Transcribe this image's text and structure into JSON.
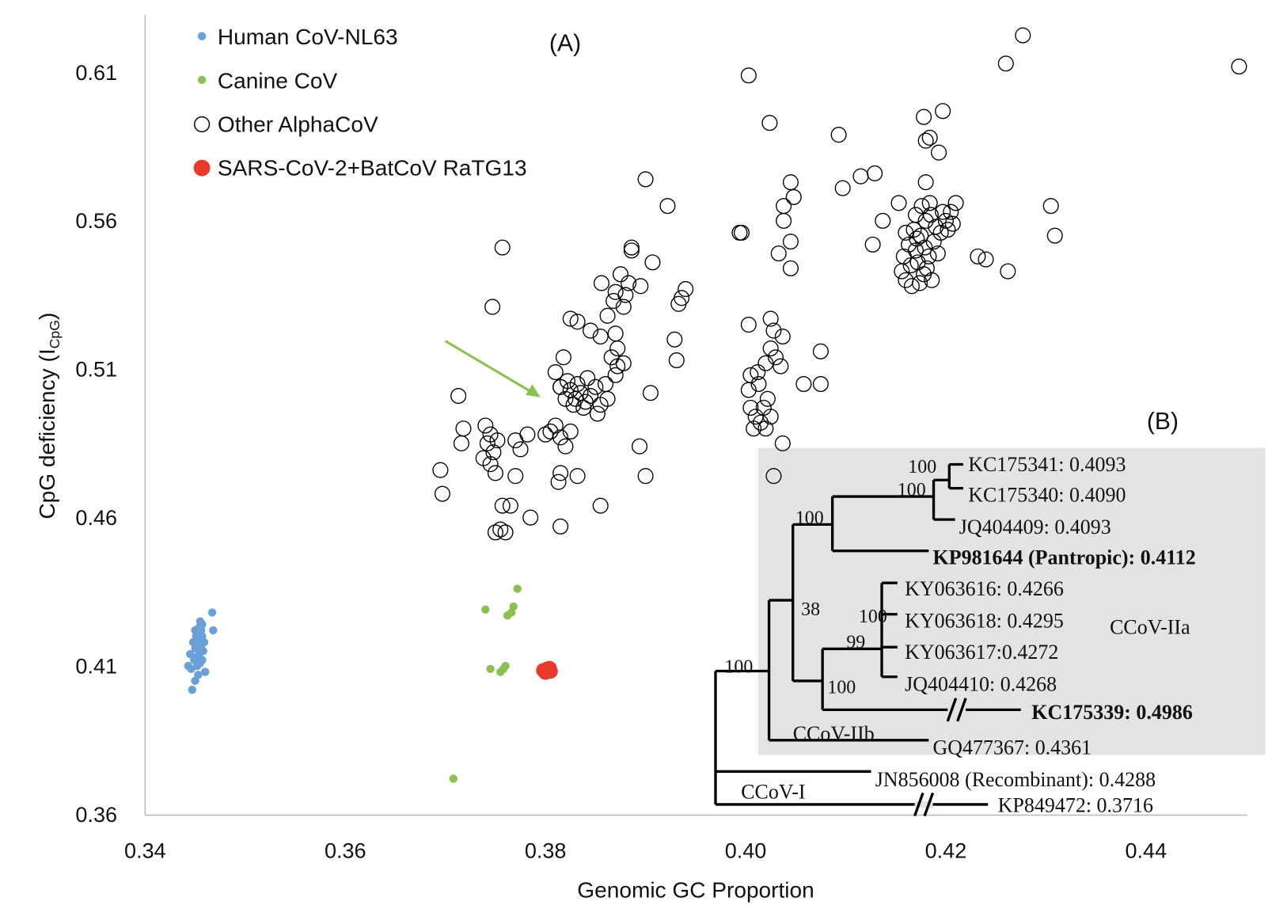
{
  "chart_data": {
    "type": "scatter",
    "xlabel": "Genomic GC Proportion",
    "ylabel": "CpG deficiency (I",
    "ylabel_sub": "CpG",
    "ylabel_close": ")",
    "xlim": [
      0.34,
      0.45
    ],
    "ylim": [
      0.36,
      0.625
    ],
    "x_ticks": [
      "0.34",
      "0.36",
      "0.38",
      "0.40",
      "0.42",
      "0.44"
    ],
    "y_ticks": [
      "0.36",
      "0.41",
      "0.46",
      "0.51",
      "0.56",
      "0.61"
    ],
    "panel_a_label": "(A)",
    "panel_b_label": "(B)",
    "legend_position": "top-left",
    "series": [
      {
        "name": "Human CoV-NL63",
        "color": "#6a9fd8",
        "marker": "filled-small",
        "points": [
          [
            0.3447,
            0.402
          ],
          [
            0.345,
            0.405
          ],
          [
            0.3453,
            0.407
          ],
          [
            0.3446,
            0.409
          ],
          [
            0.3452,
            0.41
          ],
          [
            0.3455,
            0.411
          ],
          [
            0.3449,
            0.412
          ],
          [
            0.3457,
            0.412
          ],
          [
            0.3451,
            0.413
          ],
          [
            0.3445,
            0.414
          ],
          [
            0.3454,
            0.414
          ],
          [
            0.3458,
            0.415
          ],
          [
            0.345,
            0.416
          ],
          [
            0.3456,
            0.416
          ],
          [
            0.3452,
            0.417
          ],
          [
            0.3459,
            0.418
          ],
          [
            0.3448,
            0.418
          ],
          [
            0.3455,
            0.419
          ],
          [
            0.3451,
            0.42
          ],
          [
            0.3457,
            0.42
          ],
          [
            0.3453,
            0.421
          ],
          [
            0.3456,
            0.422
          ],
          [
            0.345,
            0.422
          ],
          [
            0.3454,
            0.423
          ],
          [
            0.3457,
            0.424
          ],
          [
            0.3455,
            0.425
          ],
          [
            0.3443,
            0.41
          ],
          [
            0.346,
            0.408
          ],
          [
            0.3467,
            0.428
          ],
          [
            0.3468,
            0.422
          ]
        ]
      },
      {
        "name": "Canine CoV",
        "color": "#8cc152",
        "marker": "filled-small",
        "points": [
          [
            0.3772,
            0.436
          ],
          [
            0.374,
            0.429
          ],
          [
            0.3766,
            0.428
          ],
          [
            0.3768,
            0.43
          ],
          [
            0.3762,
            0.427
          ],
          [
            0.3745,
            0.409
          ],
          [
            0.3758,
            0.409
          ],
          [
            0.3755,
            0.408
          ],
          [
            0.376,
            0.41
          ],
          [
            0.3708,
            0.372
          ]
        ]
      },
      {
        "name": "Other AlphaCoV",
        "color": "#000000",
        "marker": "open-circle",
        "points": [
          [
            0.4277,
            0.6225
          ],
          [
            0.426,
            0.613
          ],
          [
            0.4493,
            0.612
          ],
          [
            0.4003,
            0.609
          ],
          [
            0.4024,
            0.593
          ],
          [
            0.4093,
            0.589
          ],
          [
            0.4178,
            0.595
          ],
          [
            0.4197,
            0.597
          ],
          [
            0.418,
            0.587
          ],
          [
            0.4184,
            0.588
          ],
          [
            0.4193,
            0.583
          ],
          [
            0.4097,
            0.571
          ],
          [
            0.4115,
            0.575
          ],
          [
            0.4129,
            0.576
          ],
          [
            0.39,
            0.574
          ],
          [
            0.3922,
            0.565
          ],
          [
            0.4045,
            0.573
          ],
          [
            0.4048,
            0.568
          ],
          [
            0.4038,
            0.565
          ],
          [
            0.4038,
            0.56
          ],
          [
            0.4045,
            0.553
          ],
          [
            0.4033,
            0.549
          ],
          [
            0.4045,
            0.544
          ],
          [
            0.3994,
            0.556
          ],
          [
            0.3996,
            0.556
          ],
          [
            0.418,
            0.573
          ],
          [
            0.4153,
            0.566
          ],
          [
            0.4137,
            0.56
          ],
          [
            0.4127,
            0.552
          ],
          [
            0.416,
            0.54
          ],
          [
            0.4165,
            0.545
          ],
          [
            0.417,
            0.55
          ],
          [
            0.4175,
            0.555
          ],
          [
            0.418,
            0.56
          ],
          [
            0.4185,
            0.562
          ],
          [
            0.419,
            0.558
          ],
          [
            0.4195,
            0.556
          ],
          [
            0.42,
            0.56
          ],
          [
            0.4163,
            0.552
          ],
          [
            0.4168,
            0.557
          ],
          [
            0.4172,
            0.546
          ],
          [
            0.4178,
            0.542
          ],
          [
            0.4183,
            0.548
          ],
          [
            0.4188,
            0.553
          ],
          [
            0.4192,
            0.549
          ],
          [
            0.4158,
            0.548
          ],
          [
            0.4166,
            0.538
          ],
          [
            0.4174,
            0.539
          ],
          [
            0.4181,
            0.544
          ],
          [
            0.417,
            0.562
          ],
          [
            0.4176,
            0.565
          ],
          [
            0.4184,
            0.566
          ],
          [
            0.4197,
            0.563
          ],
          [
            0.4202,
            0.557
          ],
          [
            0.416,
            0.556
          ],
          [
            0.4156,
            0.543
          ],
          [
            0.4186,
            0.54
          ],
          [
            0.4179,
            0.551
          ],
          [
            0.4171,
            0.554
          ],
          [
            0.4205,
            0.563
          ],
          [
            0.421,
            0.566
          ],
          [
            0.4207,
            0.559
          ],
          [
            0.4232,
            0.548
          ],
          [
            0.424,
            0.547
          ],
          [
            0.4262,
            0.543
          ],
          [
            0.4305,
            0.565
          ],
          [
            0.4309,
            0.555
          ],
          [
            0.3757,
            0.551
          ],
          [
            0.3747,
            0.531
          ],
          [
            0.3886,
            0.55
          ],
          [
            0.3907,
            0.546
          ],
          [
            0.3886,
            0.551
          ],
          [
            0.3856,
            0.539
          ],
          [
            0.387,
            0.536
          ],
          [
            0.3875,
            0.542
          ],
          [
            0.388,
            0.535
          ],
          [
            0.3868,
            0.533
          ],
          [
            0.3878,
            0.531
          ],
          [
            0.3862,
            0.528
          ],
          [
            0.3895,
            0.538
          ],
          [
            0.3883,
            0.539
          ],
          [
            0.394,
            0.537
          ],
          [
            0.3936,
            0.534
          ],
          [
            0.3933,
            0.532
          ],
          [
            0.3929,
            0.52
          ],
          [
            0.3931,
            0.513
          ],
          [
            0.3825,
            0.527
          ],
          [
            0.3832,
            0.526
          ],
          [
            0.3845,
            0.523
          ],
          [
            0.3855,
            0.521
          ],
          [
            0.387,
            0.522
          ],
          [
            0.3872,
            0.517
          ],
          [
            0.3866,
            0.514
          ],
          [
            0.3872,
            0.511
          ],
          [
            0.387,
            0.508
          ],
          [
            0.3878,
            0.512
          ],
          [
            0.386,
            0.505
          ],
          [
            0.3905,
            0.502
          ],
          [
            0.3825,
            0.503
          ],
          [
            0.383,
            0.5
          ],
          [
            0.3835,
            0.502
          ],
          [
            0.384,
            0.499
          ],
          [
            0.3832,
            0.505
          ],
          [
            0.3838,
            0.497
          ],
          [
            0.3845,
            0.501
          ],
          [
            0.3828,
            0.498
          ],
          [
            0.385,
            0.504
          ],
          [
            0.3855,
            0.498
          ],
          [
            0.382,
            0.5
          ],
          [
            0.3842,
            0.507
          ],
          [
            0.3815,
            0.504
          ],
          [
            0.381,
            0.509
          ],
          [
            0.3818,
            0.514
          ],
          [
            0.3852,
            0.495
          ],
          [
            0.3862,
            0.5
          ],
          [
            0.4003,
            0.525
          ],
          [
            0.4025,
            0.527
          ],
          [
            0.4028,
            0.523
          ],
          [
            0.4037,
            0.521
          ],
          [
            0.4025,
            0.517
          ],
          [
            0.403,
            0.514
          ],
          [
            0.4035,
            0.511
          ],
          [
            0.402,
            0.512
          ],
          [
            0.4005,
            0.508
          ],
          [
            0.4013,
            0.505
          ],
          [
            0.4003,
            0.503
          ],
          [
            0.4058,
            0.505
          ],
          [
            0.4075,
            0.505
          ],
          [
            0.4075,
            0.516
          ],
          [
            0.4005,
            0.497
          ],
          [
            0.401,
            0.494
          ],
          [
            0.4015,
            0.492
          ],
          [
            0.402,
            0.49
          ],
          [
            0.4025,
            0.494
          ],
          [
            0.4008,
            0.49
          ],
          [
            0.4018,
            0.497
          ],
          [
            0.4037,
            0.485
          ],
          [
            0.4028,
            0.474
          ],
          [
            0.4012,
            0.509
          ],
          [
            0.4022,
            0.5
          ],
          [
            0.3713,
            0.501
          ],
          [
            0.3718,
            0.49
          ],
          [
            0.3716,
            0.485
          ],
          [
            0.3695,
            0.476
          ],
          [
            0.3697,
            0.468
          ],
          [
            0.374,
            0.491
          ],
          [
            0.3745,
            0.488
          ],
          [
            0.3742,
            0.485
          ],
          [
            0.3748,
            0.482
          ],
          [
            0.3745,
            0.478
          ],
          [
            0.375,
            0.475
          ],
          [
            0.3752,
            0.486
          ],
          [
            0.3738,
            0.48
          ],
          [
            0.377,
            0.486
          ],
          [
            0.3782,
            0.488
          ],
          [
            0.3775,
            0.483
          ],
          [
            0.377,
            0.474
          ],
          [
            0.3757,
            0.464
          ],
          [
            0.3765,
            0.464
          ],
          [
            0.375,
            0.455
          ],
          [
            0.376,
            0.455
          ],
          [
            0.3755,
            0.456
          ],
          [
            0.3785,
            0.46
          ],
          [
            0.3815,
            0.457
          ],
          [
            0.3855,
            0.464
          ],
          [
            0.3805,
            0.489
          ],
          [
            0.381,
            0.491
          ],
          [
            0.3815,
            0.487
          ],
          [
            0.382,
            0.484
          ],
          [
            0.3825,
            0.489
          ],
          [
            0.38,
            0.488
          ],
          [
            0.3813,
            0.472
          ],
          [
            0.3815,
            0.475
          ],
          [
            0.3832,
            0.474
          ],
          [
            0.3815,
            0.504
          ],
          [
            0.3822,
            0.506
          ],
          [
            0.3894,
            0.484
          ],
          [
            0.39,
            0.474
          ]
        ]
      },
      {
        "name": "SARS-CoV-2+BatCoV RaTG13",
        "color": "#e8392a",
        "marker": "filled-large",
        "points": [
          [
            0.3798,
            0.4085
          ],
          [
            0.3802,
            0.409
          ],
          [
            0.3805,
            0.4082
          ],
          [
            0.38,
            0.4078
          ],
          [
            0.3804,
            0.4092
          ]
        ]
      }
    ],
    "annotation_arrow": {
      "color": "#8cc152",
      "from": [
        0.37,
        0.5195
      ],
      "to": [
        0.3795,
        0.5005
      ]
    }
  },
  "tree": {
    "bootstrap": [
      "100",
      "100",
      "100",
      "38",
      "100",
      "99",
      "100",
      "100"
    ],
    "clades": {
      "iia": "CCoV-IIa",
      "iib": "CCoV-IIb",
      "i": "CCoV-I"
    },
    "leaves": [
      "KC175341: 0.4093",
      "KC175340: 0.4090",
      "JQ404409: 0.4093",
      "KP981644 (Pantropic): 0.4112",
      "KY063616: 0.4266",
      "KY063618: 0.4295",
      "KY063617:0.4272",
      "JQ404410: 0.4268",
      "KC175339: 0.4986",
      "GQ477367: 0.4361",
      "JN856008 (Recombinant): 0.4288",
      "KP849472: 0.3716"
    ],
    "highlight_color": "#e8392a",
    "box_color": "#e3e3e3"
  }
}
